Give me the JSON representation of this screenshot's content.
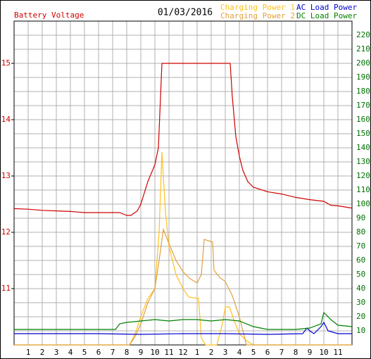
{
  "chart_data": {
    "type": "line",
    "title": "01/03/2016",
    "ylabel": "Battery Voltage",
    "ylabel_color": "#d00000",
    "xlim": [
      0,
      24
    ],
    "xticks": [
      1,
      2,
      3,
      4,
      5,
      6,
      7,
      8,
      9,
      10,
      11,
      12,
      {
        "value": 13,
        "label": "1"
      },
      {
        "value": 14,
        "label": "2"
      },
      {
        "value": 15,
        "label": "3"
      },
      {
        "value": 16,
        "label": "4"
      },
      {
        "value": 17,
        "label": "5"
      },
      {
        "value": 18,
        "label": "6"
      },
      {
        "value": 19,
        "label": "7"
      },
      {
        "value": 20,
        "label": "8"
      },
      {
        "value": 21,
        "label": "9"
      },
      {
        "value": 22,
        "label": "10"
      },
      {
        "value": 23,
        "label": "11"
      }
    ],
    "ylim": [
      10,
      15.75
    ],
    "yticks": [
      11,
      12,
      13,
      14,
      15
    ],
    "y2lim": [
      0,
      230
    ],
    "y2ticks": [
      10,
      20,
      30,
      40,
      50,
      60,
      70,
      80,
      90,
      100,
      110,
      120,
      130,
      140,
      150,
      160,
      170,
      180,
      190,
      200,
      210,
      220
    ],
    "y2tick_color": "#007000",
    "grid": true,
    "series": [
      {
        "name": "Battery Voltage",
        "color": "#d00000",
        "axis": "y",
        "legend": false,
        "x": [
          0,
          1,
          2,
          3,
          4,
          4.5,
          5,
          6,
          7,
          7.5,
          8,
          8.3,
          8.75,
          9,
          9.5,
          10,
          10.25,
          10.5,
          15.35,
          15.5,
          15.75,
          16,
          16.25,
          16.6,
          17,
          18,
          19,
          20,
          21,
          22,
          22.5,
          23,
          24
        ],
        "values": [
          12.42,
          12.41,
          12.39,
          12.38,
          12.37,
          12.36,
          12.35,
          12.35,
          12.35,
          12.35,
          12.3,
          12.3,
          12.38,
          12.5,
          12.9,
          13.2,
          13.5,
          15.0,
          15.0,
          14.4,
          13.7,
          13.35,
          13.1,
          12.9,
          12.8,
          12.72,
          12.68,
          12.62,
          12.58,
          12.55,
          12.48,
          12.47,
          12.43
        ]
      },
      {
        "name": "Charging Power 1",
        "color": "#ffc020",
        "axis": "y2",
        "legend": true,
        "x": [
          0,
          8.2,
          8.6,
          9,
          9.5,
          10,
          10.3,
          10.5,
          10.75,
          11,
          11.5,
          12,
          12.4,
          13.1,
          13.3,
          13.6,
          14.4,
          14.8,
          15,
          15.3,
          15.6,
          16,
          16.5,
          17,
          24
        ],
        "values": [
          0,
          0,
          8,
          20,
          33,
          40,
          80,
          137,
          95,
          70,
          50,
          40,
          34,
          33,
          5,
          0,
          0,
          15,
          27,
          27,
          18,
          8,
          3,
          0,
          0
        ]
      },
      {
        "name": "Charging Power 2",
        "color": "#e0a040",
        "axis": "y2",
        "legend": true,
        "x": [
          0,
          8.2,
          8.6,
          9,
          9.5,
          10,
          10.3,
          10.6,
          11,
          11.5,
          12,
          12.5,
          13,
          13.3,
          13.5,
          14.1,
          14.2,
          14.6,
          15,
          15.5,
          16,
          16.5,
          24
        ],
        "values": [
          0,
          0,
          6,
          15,
          30,
          40,
          60,
          82,
          72,
          60,
          52,
          47,
          44,
          50,
          75,
          73,
          53,
          48,
          45,
          35,
          20,
          0,
          0
        ]
      },
      {
        "name": "AC Load Power",
        "color": "#0000d0",
        "axis": "y2",
        "legend": true,
        "x": [
          0,
          3,
          6,
          9,
          12,
          15,
          18,
          20.5,
          20.8,
          21,
          21.3,
          21.8,
          22,
          22.3,
          23,
          24
        ],
        "values": [
          8,
          8,
          8,
          7.5,
          8,
          8,
          7.5,
          8,
          12,
          10,
          8,
          13,
          16,
          10,
          8,
          8
        ]
      },
      {
        "name": "DC Load Power",
        "color": "#008000",
        "axis": "y2",
        "legend": true,
        "x": [
          0,
          2,
          4,
          6,
          7.2,
          7.5,
          8,
          9,
          10,
          11,
          12,
          13,
          14,
          15,
          16,
          17,
          18,
          19,
          20,
          21,
          21.8,
          22,
          22.5,
          23,
          24
        ],
        "values": [
          11,
          11,
          11,
          11,
          11,
          15,
          16,
          17,
          18,
          17,
          18,
          18,
          17,
          18,
          17,
          13,
          11,
          11,
          11,
          12,
          15,
          23,
          18,
          14,
          13
        ]
      }
    ]
  }
}
